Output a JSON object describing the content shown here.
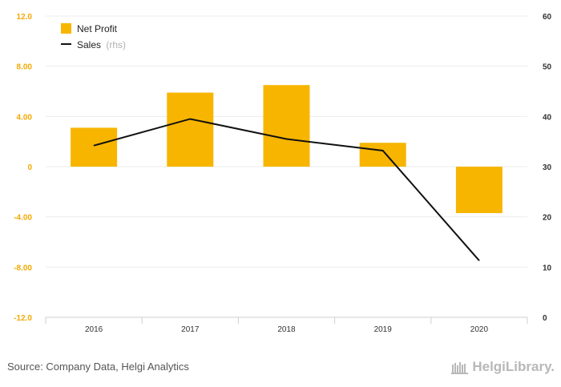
{
  "chart_data": {
    "type": "bar",
    "categories": [
      "2016",
      "2017",
      "2018",
      "2019",
      "2020"
    ],
    "series": [
      {
        "name": "Net Profit",
        "type": "bar",
        "axis": "left",
        "color": "#f7b500",
        "values": [
          3.1,
          5.9,
          6.5,
          1.9,
          -3.7
        ]
      },
      {
        "name": "Sales",
        "name_suffix": "(rhs)",
        "type": "line",
        "axis": "right",
        "color": "#111111",
        "values": [
          34.2,
          39.5,
          35.5,
          33.2,
          11.3
        ]
      }
    ],
    "y_left": {
      "ylim": [
        -12,
        12
      ],
      "ticks": [
        "12.0",
        "8.00",
        "4.00",
        "0",
        "-4.00",
        "-8.00",
        "-12.0"
      ],
      "tick_values": [
        12,
        8,
        4,
        0,
        -4,
        -8,
        -12
      ],
      "color": "#f2a900"
    },
    "y_right": {
      "ylim": [
        0,
        60
      ],
      "ticks": [
        "60",
        "50",
        "40",
        "30",
        "20",
        "10",
        "0"
      ],
      "tick_values": [
        60,
        50,
        40,
        30,
        20,
        10,
        0
      ]
    },
    "grid": true,
    "legend": "top-left"
  },
  "footer": {
    "source": "Source: Company Data, Helgi Analytics",
    "brand": "HelgiLibrary."
  }
}
